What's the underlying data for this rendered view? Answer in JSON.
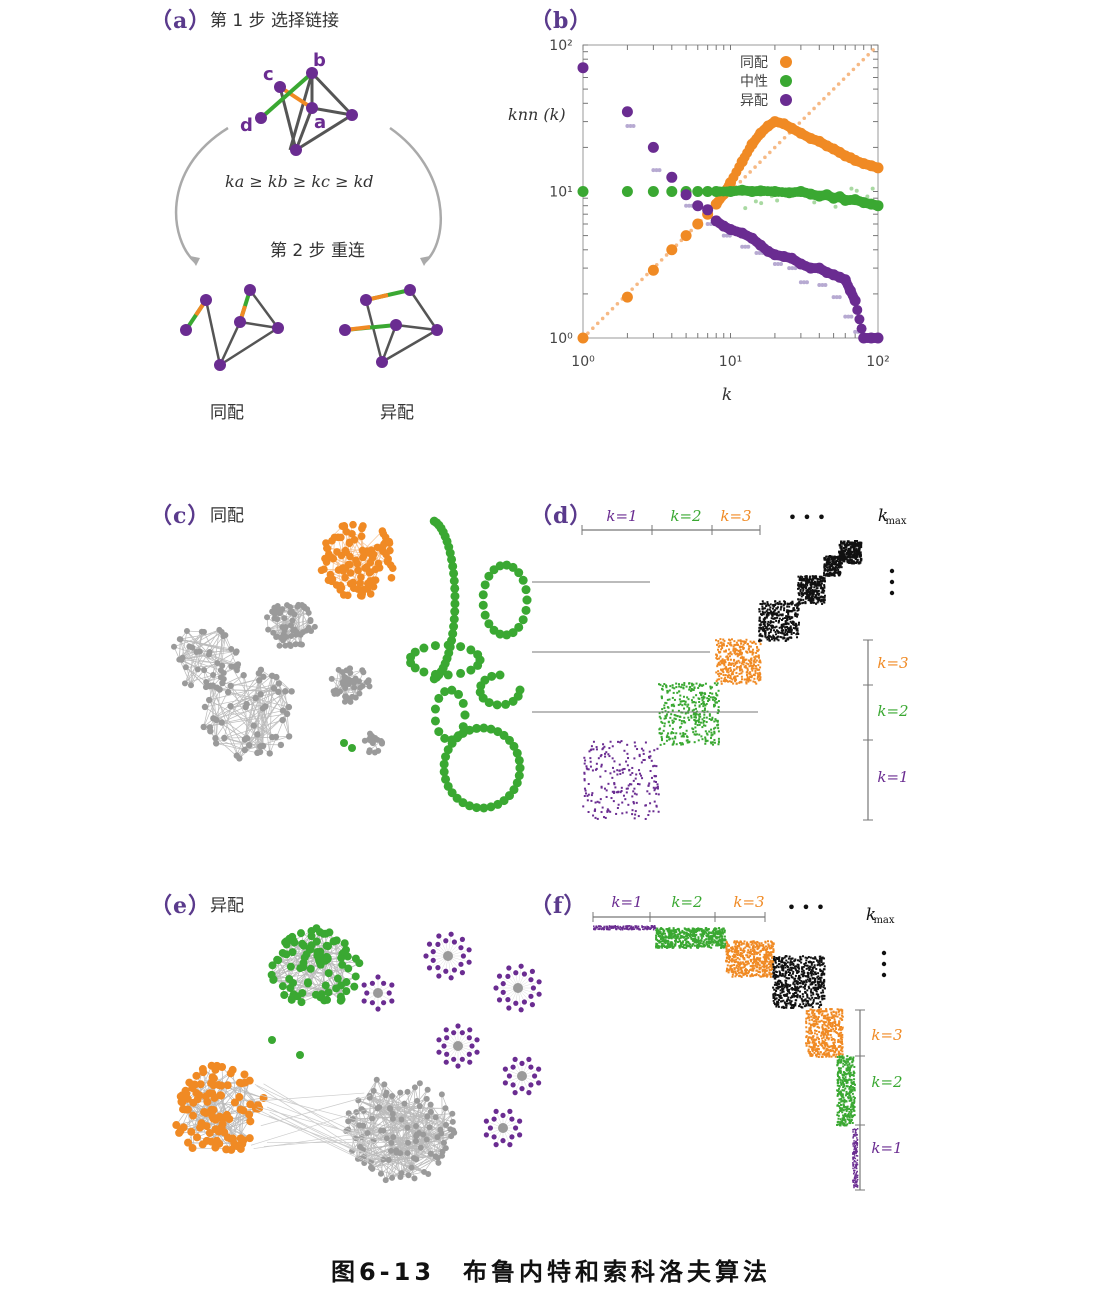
{
  "panels": {
    "a": {
      "label": "（a）",
      "title": "第 1 步 选择链接",
      "inequality": "ka ≥ kb ≥ kc ≥ kd",
      "step2": "第 2 步 重连",
      "left_result": "同配",
      "right_result": "异配",
      "node_labels": {
        "a": "a",
        "b": "b",
        "c": "c",
        "d": "d"
      }
    },
    "b": {
      "label": "（b）"
    },
    "c": {
      "label": "（c）",
      "title": "同配"
    },
    "d": {
      "label": "（d）",
      "top_labels": [
        "k=1",
        "k=2",
        "k=3"
      ],
      "dots": "• • •",
      "kmax": "k",
      "kmax_sub": "max",
      "side_labels": [
        "k=3",
        "k=2",
        "k=1"
      ]
    },
    "e": {
      "label": "（e）",
      "title": "异配"
    },
    "f": {
      "label": "（f）",
      "top_labels": [
        "k=1",
        "k=2",
        "k=3"
      ],
      "dots": "• • •",
      "kmax": "k",
      "kmax_sub": "max",
      "side_labels": [
        "k=3",
        "k=2",
        "k=1"
      ]
    }
  },
  "colors": {
    "purple": "#6a2c91",
    "green": "#3aa832",
    "orange": "#f08a24",
    "gray": "#9a9a9a",
    "black": "#111111",
    "label": "#5a3a8c"
  },
  "chart_data": {
    "type": "scatter",
    "title": "",
    "xlabel": "k",
    "ylabel": "knn (k)",
    "xscale": "log",
    "yscale": "log",
    "xlim": [
      1,
      100
    ],
    "ylim": [
      1,
      100
    ],
    "x_ticks": [
      "10⁰",
      "10¹",
      "10²"
    ],
    "y_ticks": [
      "10⁰",
      "10¹",
      "10²"
    ],
    "legend_position": "top-right",
    "series": [
      {
        "name": "同配",
        "color": "#f08a24",
        "x": [
          1,
          2,
          3,
          4,
          5,
          6,
          7,
          8,
          9,
          10,
          12,
          14,
          16,
          18,
          20,
          23,
          26,
          30,
          35,
          40,
          45,
          50,
          55,
          60,
          65,
          70,
          80,
          90,
          100
        ],
        "y": [
          1,
          1.9,
          2.9,
          4.0,
          5.0,
          6.0,
          7.0,
          8.2,
          9.6,
          11.5,
          16,
          21,
          25,
          28,
          30,
          29,
          27,
          25,
          23,
          22,
          20.5,
          19.5,
          18.5,
          17.5,
          17,
          16.3,
          15.5,
          15,
          14.5
        ]
      },
      {
        "name": "中性",
        "color": "#3aa832",
        "x": [
          1,
          2,
          3,
          4,
          5,
          6,
          7,
          8,
          10,
          12,
          14,
          16,
          20,
          25,
          30,
          35,
          40,
          45,
          50,
          55,
          60,
          70,
          80,
          90,
          100
        ],
        "y": [
          10,
          10,
          10,
          10,
          10,
          10,
          10,
          10,
          10,
          10.2,
          10,
          10.1,
          10,
          9.8,
          10,
          9.6,
          9.3,
          9.5,
          9,
          9.2,
          8.7,
          8.8,
          8.4,
          8.2,
          8
        ]
      },
      {
        "name": "异配",
        "color": "#6a2c91",
        "x": [
          1,
          2,
          3,
          4,
          5,
          6,
          7,
          8,
          9,
          10,
          12,
          14,
          16,
          18,
          20,
          23,
          26,
          30,
          35,
          40,
          45,
          50,
          55,
          60,
          65,
          70,
          80,
          90,
          100
        ],
        "y": [
          70,
          35,
          20,
          12.5,
          9.5,
          8.0,
          7.5,
          6.3,
          5.8,
          5.5,
          5.2,
          4.8,
          4.3,
          3.9,
          3.7,
          3.6,
          3.5,
          3.2,
          3.0,
          3.0,
          2.8,
          2.7,
          2.6,
          2.5,
          2.1,
          1.8,
          1.0,
          1.0,
          1.0
        ]
      }
    ]
  },
  "caption": {
    "text": "图6-13　布鲁内特和索科洛夫算法"
  }
}
